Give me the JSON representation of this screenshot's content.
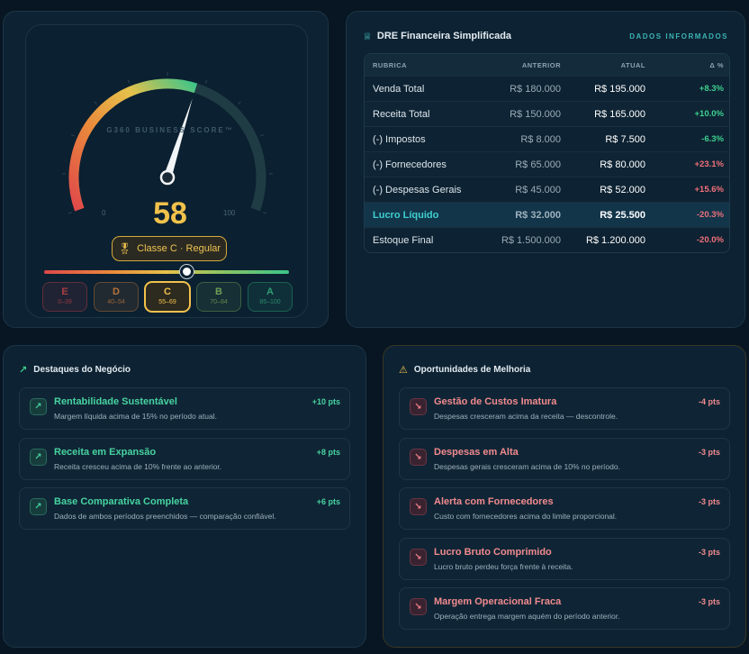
{
  "gauge": {
    "brand_label": "G360 BUSINESS SCORE™",
    "min_label": "0",
    "max_label": "100",
    "score": "58",
    "score_value": 58,
    "class_label": "Classe C · Regular",
    "medal_icon": "medal-icon",
    "grades": [
      {
        "letter": "E",
        "range": "0–39",
        "color": "#e0484a",
        "active": false
      },
      {
        "letter": "D",
        "range": "40–54",
        "color": "#ea8b3c",
        "active": false
      },
      {
        "letter": "C",
        "range": "55–69",
        "color": "#f1c24b",
        "active": true
      },
      {
        "letter": "B",
        "range": "70–84",
        "color": "#8ec462",
        "active": false
      },
      {
        "letter": "A",
        "range": "85–100",
        "color": "#3cc48a",
        "active": false
      }
    ]
  },
  "dre": {
    "title": "DRE Financeira Simplificada",
    "tag": "DADOS INFORMADOS",
    "icon": "crown-icon",
    "columns": {
      "rubrica": "RUBRICA",
      "anterior": "ANTERIOR",
      "atual": "ATUAL",
      "delta": "Δ %"
    },
    "rows": [
      {
        "rubrica": "Venda Total",
        "anterior": "R$ 180.000",
        "atual": "R$ 195.000",
        "delta": "+8.3%",
        "positive": true
      },
      {
        "rubrica": "Receita Total",
        "anterior": "R$ 150.000",
        "atual": "R$ 165.000",
        "delta": "+10.0%",
        "positive": true
      },
      {
        "rubrica": "(-) Impostos",
        "anterior": "R$ 8.000",
        "atual": "R$ 7.500",
        "delta": "-6.3%",
        "positive": true
      },
      {
        "rubrica": "(-) Fornecedores",
        "anterior": "R$ 65.000",
        "atual": "R$ 80.000",
        "delta": "+23.1%",
        "positive": false
      },
      {
        "rubrica": "(-) Despesas Gerais",
        "anterior": "R$ 45.000",
        "atual": "R$ 52.000",
        "delta": "+15.6%",
        "positive": false
      },
      {
        "rubrica": "Lucro Líquido",
        "anterior": "R$ 32.000",
        "atual": "R$ 25.500",
        "delta": "-20.3%",
        "positive": false,
        "highlight": true
      },
      {
        "rubrica": "Estoque Final",
        "anterior": "R$ 1.500.000",
        "atual": "R$ 1.200.000",
        "delta": "-20.0%",
        "positive": false
      }
    ]
  },
  "highlights": {
    "title": "Destaques do Negócio",
    "icon": "trending-up-icon",
    "items": [
      {
        "title": "Rentabilidade Sustentável",
        "desc": "Margem líquida acima de 15% no período atual.",
        "pts": "+10 pts"
      },
      {
        "title": "Receita em Expansão",
        "desc": "Receita cresceu acima de 10% frente ao anterior.",
        "pts": "+8 pts"
      },
      {
        "title": "Base Comparativa Completa",
        "desc": "Dados de ambos períodos preenchidos — comparação confiável.",
        "pts": "+6 pts"
      }
    ]
  },
  "opportunities": {
    "title": "Oportunidades de Melhoria",
    "icon": "warning-icon",
    "items": [
      {
        "title": "Gestão de Custos Imatura",
        "desc": "Despesas cresceram acima da receita — descontrole.",
        "pts": "-4 pts"
      },
      {
        "title": "Despesas em Alta",
        "desc": "Despesas gerais cresceram acima de 10% no período.",
        "pts": "-3 pts"
      },
      {
        "title": "Alerta com Fornecedores",
        "desc": "Custo com fornecedores acima do limite proporcional.",
        "pts": "-3 pts"
      },
      {
        "title": "Lucro Bruto Comprimido",
        "desc": "Lucro bruto perdeu força frente à receita.",
        "pts": "-3 pts"
      },
      {
        "title": "Margem Operacional Fraca",
        "desc": "Operação entrega margem aquém do período anterior.",
        "pts": "-3 pts"
      }
    ]
  }
}
